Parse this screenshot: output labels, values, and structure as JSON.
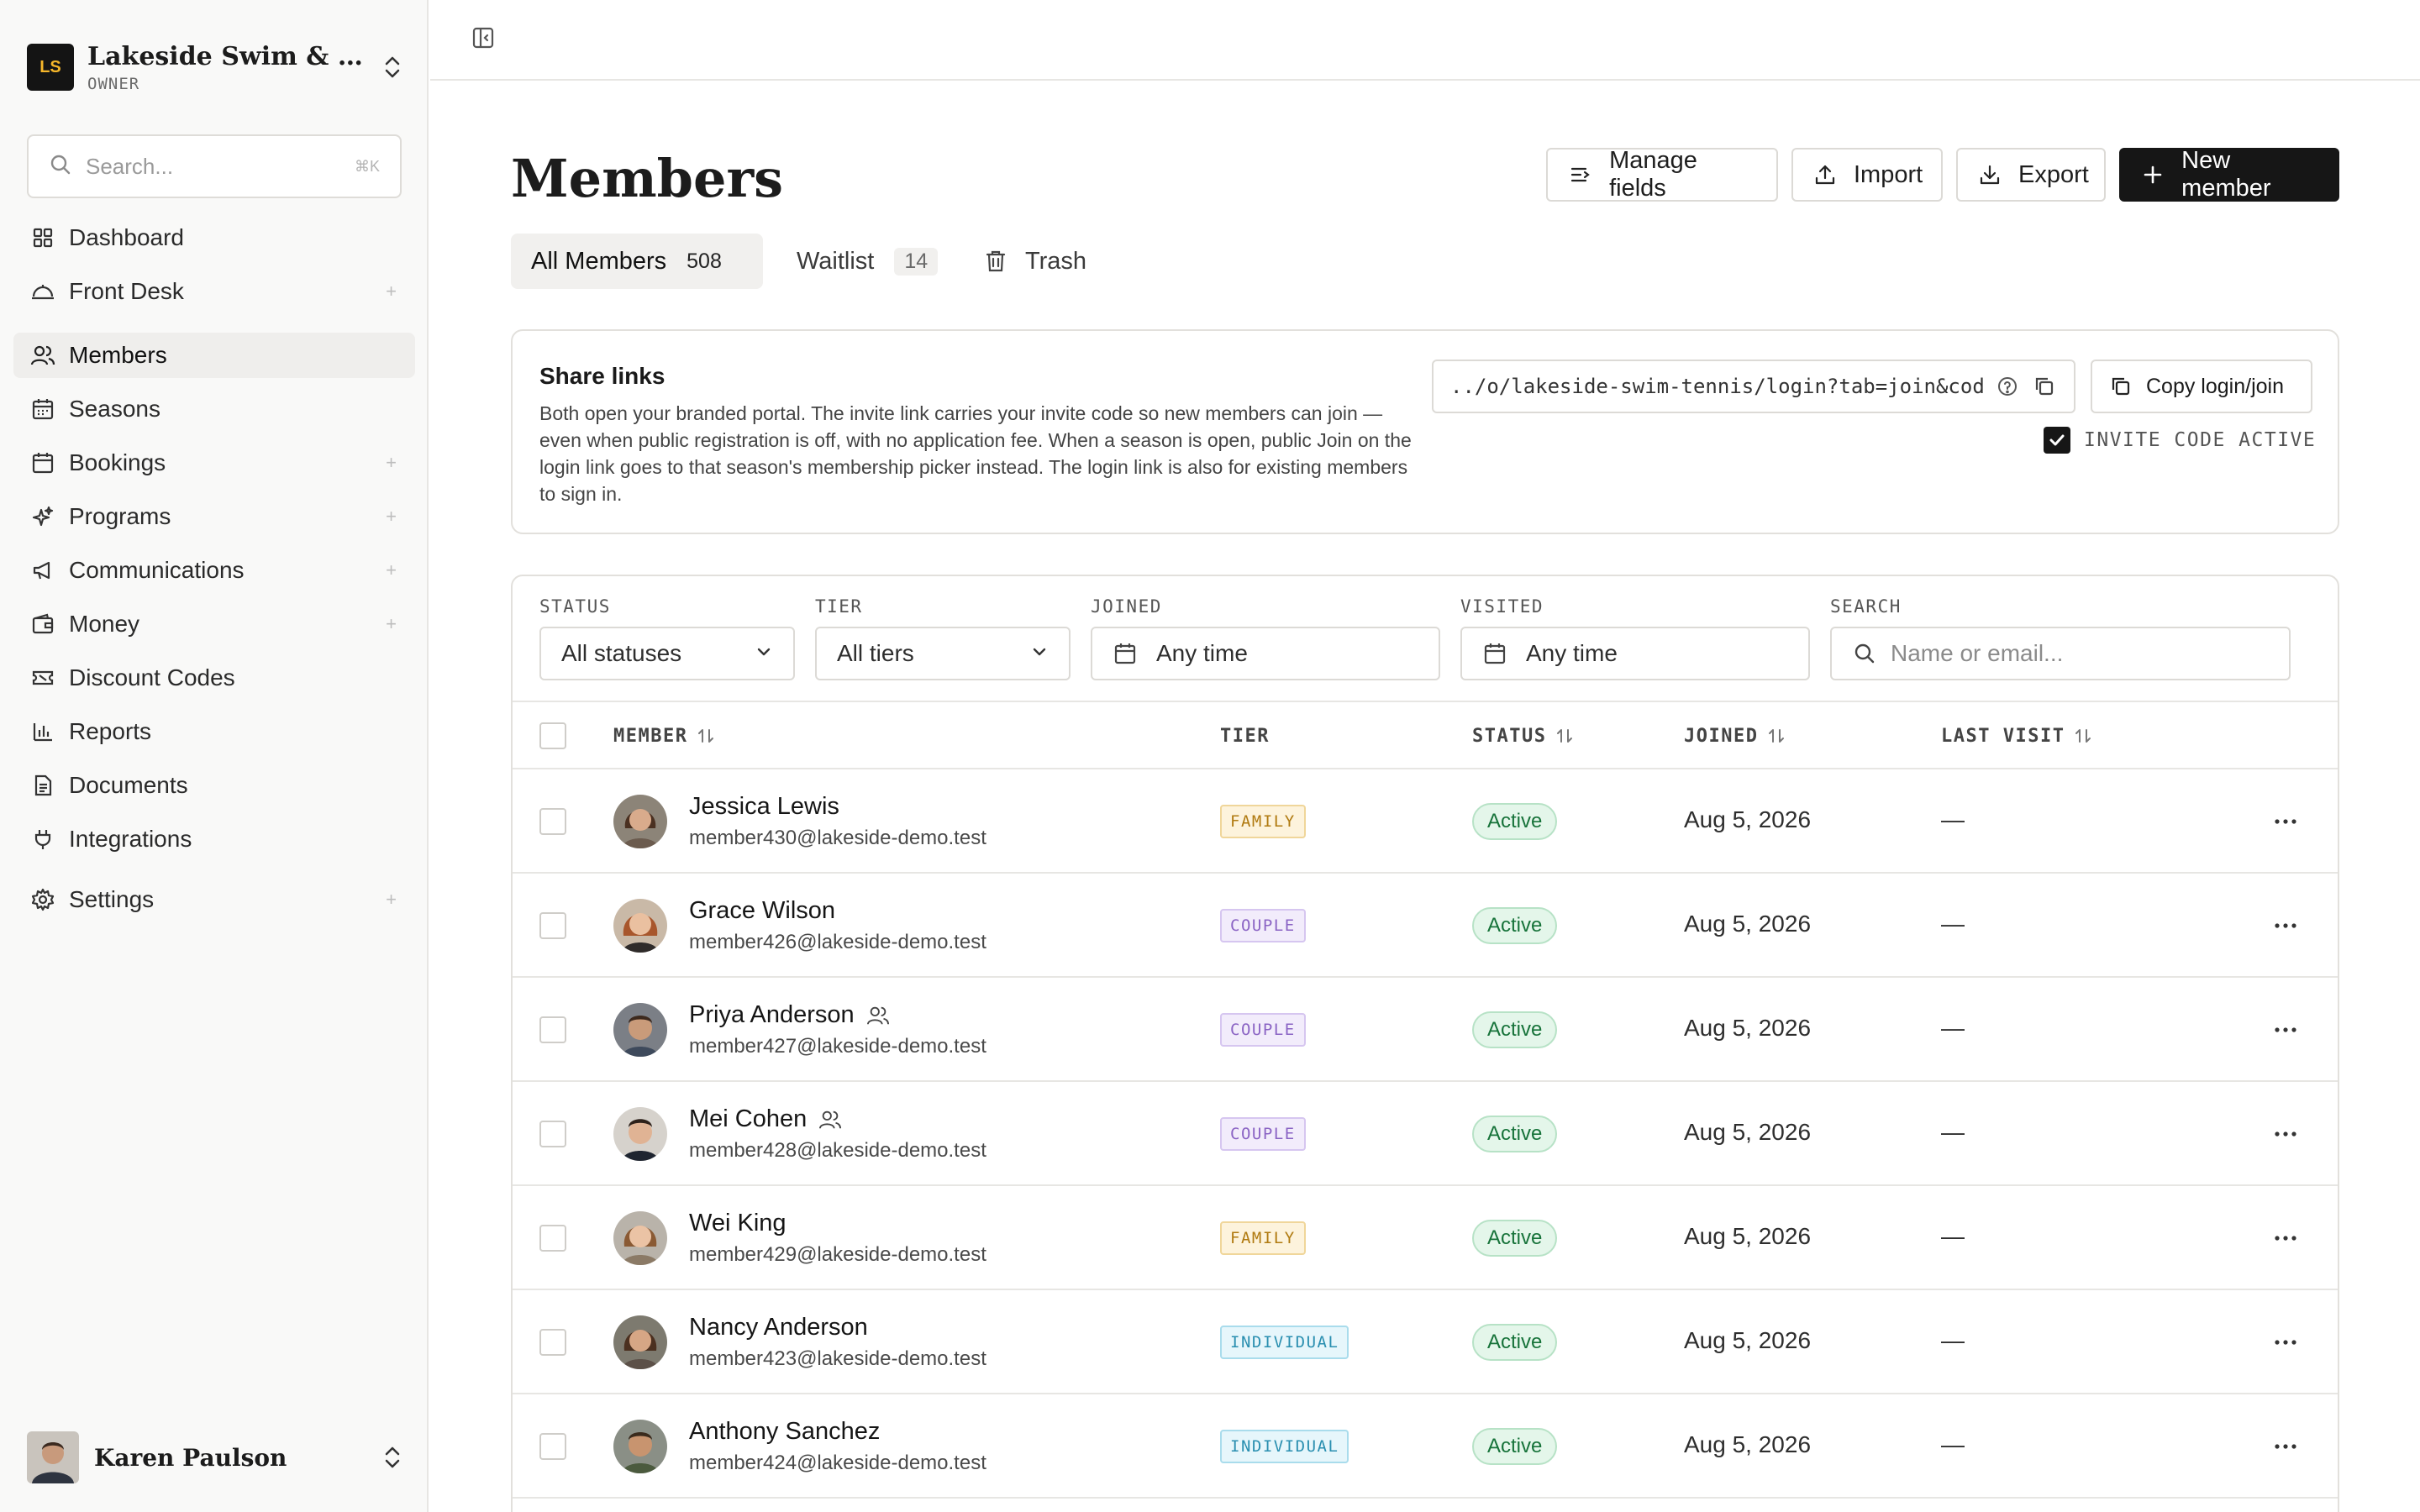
{
  "org": {
    "initials": "LS",
    "name": "Lakeside Swim & Tennis Club",
    "role": "OWNER"
  },
  "sidebar": {
    "search_placeholder": "Search...",
    "search_shortcut": "⌘K",
    "items": [
      {
        "label": "Dashboard",
        "icon": "dashboard-icon",
        "expandable": false
      },
      {
        "label": "Front Desk",
        "icon": "front-desk-icon",
        "expandable": true
      },
      {
        "label": "Members",
        "icon": "members-icon",
        "expandable": false,
        "active": true
      },
      {
        "label": "Seasons",
        "icon": "calendar-icon",
        "expandable": false
      },
      {
        "label": "Bookings",
        "icon": "bookings-icon",
        "expandable": true
      },
      {
        "label": "Programs",
        "icon": "sparkle-icon",
        "expandable": true
      },
      {
        "label": "Communications",
        "icon": "megaphone-icon",
        "expandable": true
      },
      {
        "label": "Money",
        "icon": "wallet-icon",
        "expandable": true
      },
      {
        "label": "Discount Codes",
        "icon": "ticket-icon",
        "expandable": false
      },
      {
        "label": "Reports",
        "icon": "bar-chart-icon",
        "expandable": false
      },
      {
        "label": "Documents",
        "icon": "document-icon",
        "expandable": false
      },
      {
        "label": "Integrations",
        "icon": "plug-icon",
        "expandable": false
      },
      {
        "label": "Settings",
        "icon": "gear-icon",
        "expandable": true
      }
    ],
    "expand_glyph": "+"
  },
  "user": {
    "name": "Karen Paulson"
  },
  "page": {
    "title": "Members",
    "buttons": {
      "manage_fields": "Manage fields",
      "import": "Import",
      "export": "Export",
      "new_member": "New member"
    },
    "tabs": [
      {
        "label": "All Members",
        "count": "508",
        "active": true
      },
      {
        "label": "Waitlist",
        "count": "14",
        "active": false
      },
      {
        "label": "Trash",
        "count": "",
        "active": false
      }
    ]
  },
  "share": {
    "title": "Share links",
    "description": "Both open your branded portal. The invite link carries your invite code so new members can join — even when public registration is off, with no application fee. When a season is open, public Join on the login link goes to that season's membership picker instead. The login link is also for existing members to sign in.",
    "url": "../o/lakeside-swim-tennis/login?tab=join&code=",
    "copy_label": "Copy login/join",
    "invite_label": "INVITE CODE ACTIVE",
    "invite_active": true
  },
  "filters": {
    "status": {
      "label": "STATUS",
      "value": "All statuses"
    },
    "tier": {
      "label": "TIER",
      "value": "All tiers"
    },
    "joined": {
      "label": "JOINED",
      "value": "Any time"
    },
    "visited": {
      "label": "VISITED",
      "value": "Any time"
    },
    "search": {
      "label": "SEARCH",
      "placeholder": "Name or email..."
    }
  },
  "table": {
    "headers": {
      "member": "MEMBER",
      "tier": "TIER",
      "status": "STATUS",
      "joined": "JOINED",
      "last_visit": "LAST VISIT"
    },
    "rows": [
      {
        "name": "Jessica Lewis",
        "email": "member430@lakeside-demo.test",
        "tier": "FAMILY",
        "status": "Active",
        "joined": "Aug 5, 2026",
        "last_visit": "—",
        "household": false
      },
      {
        "name": "Grace Wilson",
        "email": "member426@lakeside-demo.test",
        "tier": "COUPLE",
        "status": "Active",
        "joined": "Aug 5, 2026",
        "last_visit": "—",
        "household": false
      },
      {
        "name": "Priya Anderson",
        "email": "member427@lakeside-demo.test",
        "tier": "COUPLE",
        "status": "Active",
        "joined": "Aug 5, 2026",
        "last_visit": "—",
        "household": true
      },
      {
        "name": "Mei Cohen",
        "email": "member428@lakeside-demo.test",
        "tier": "COUPLE",
        "status": "Active",
        "joined": "Aug 5, 2026",
        "last_visit": "—",
        "household": true
      },
      {
        "name": "Wei King",
        "email": "member429@lakeside-demo.test",
        "tier": "FAMILY",
        "status": "Active",
        "joined": "Aug 5, 2026",
        "last_visit": "—",
        "household": false
      },
      {
        "name": "Nancy Anderson",
        "email": "member423@lakeside-demo.test",
        "tier": "INDIVIDUAL",
        "status": "Active",
        "joined": "Aug 5, 2026",
        "last_visit": "—",
        "household": false
      },
      {
        "name": "Anthony Sanchez",
        "email": "member424@lakeside-demo.test",
        "tier": "INDIVIDUAL",
        "status": "Active",
        "joined": "Aug 5, 2026",
        "last_visit": "—",
        "household": false
      }
    ]
  }
}
